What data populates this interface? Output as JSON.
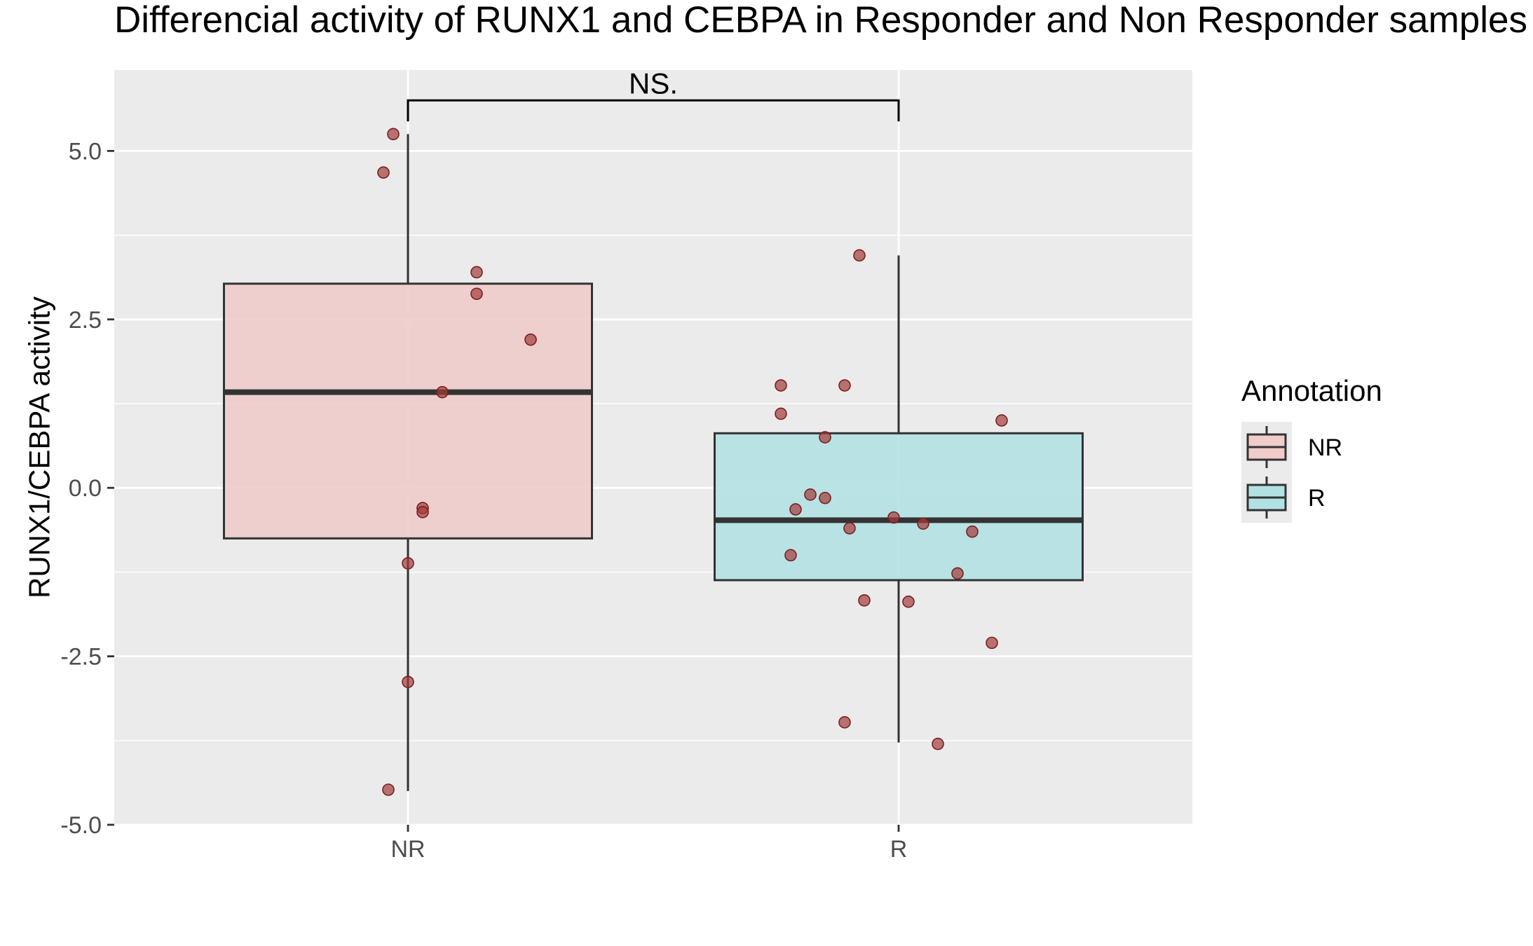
{
  "chart_data": {
    "type": "box",
    "title": "Differencial activity of RUNX1 and CEBPA in Responder and Non Responder samples",
    "xlabel": "",
    "ylabel": "RUNX1/CEBPA activity",
    "ylim": [
      -5.0,
      6.2
    ],
    "yticks": [
      -5.0,
      -2.5,
      0.0,
      2.5,
      5.0
    ],
    "ytick_labels": [
      "-5.0",
      "-2.5",
      "0.0",
      "2.5",
      "5.0"
    ],
    "categories": [
      "NR",
      "R"
    ],
    "significance": {
      "label": "NS.",
      "between": [
        "NR",
        "R"
      ],
      "y": 5.75
    },
    "legend": {
      "title": "Annotation",
      "placement": "right",
      "entries": [
        "NR",
        "R"
      ]
    },
    "colors": {
      "panel": "#ebebeb",
      "grid": "#ffffff",
      "box_edge": "#333333",
      "point": "#a33c3c",
      "NR_fill": "#f0cccb",
      "R_fill": "#b2e1e3"
    },
    "series": [
      {
        "name": "NR",
        "box": {
          "lower_whisker": -4.5,
          "q1": -0.75,
          "median": 1.42,
          "q3": 3.03,
          "upper_whisker": 5.25
        },
        "points": [
          {
            "x": -0.03,
            "y": 5.25
          },
          {
            "x": -0.05,
            "y": 4.68
          },
          {
            "x": 0.14,
            "y": 3.2
          },
          {
            "x": 0.14,
            "y": 2.88
          },
          {
            "x": 0.25,
            "y": 2.2
          },
          {
            "x": 0.07,
            "y": 1.42
          },
          {
            "x": 0.03,
            "y": -0.3
          },
          {
            "x": 0.03,
            "y": -0.36
          },
          {
            "x": 0.0,
            "y": -1.12
          },
          {
            "x": 0.0,
            "y": -2.88
          },
          {
            "x": -0.04,
            "y": -4.48
          }
        ]
      },
      {
        "name": "R",
        "box": {
          "lower_whisker": -3.78,
          "q1": -1.37,
          "median": -0.48,
          "q3": 0.81,
          "upper_whisker": 3.45
        },
        "points": [
          {
            "x": -0.08,
            "y": 3.45
          },
          {
            "x": -0.24,
            "y": 1.52
          },
          {
            "x": -0.11,
            "y": 1.52
          },
          {
            "x": -0.24,
            "y": 1.1
          },
          {
            "x": 0.21,
            "y": 1.0
          },
          {
            "x": -0.15,
            "y": 0.75
          },
          {
            "x": -0.18,
            "y": -0.1
          },
          {
            "x": -0.15,
            "y": -0.15
          },
          {
            "x": -0.21,
            "y": -0.32
          },
          {
            "x": -0.01,
            "y": -0.44
          },
          {
            "x": 0.05,
            "y": -0.53
          },
          {
            "x": -0.1,
            "y": -0.6
          },
          {
            "x": 0.15,
            "y": -0.65
          },
          {
            "x": -0.22,
            "y": -1.0
          },
          {
            "x": 0.12,
            "y": -1.27
          },
          {
            "x": -0.07,
            "y": -1.67
          },
          {
            "x": 0.02,
            "y": -1.69
          },
          {
            "x": 0.19,
            "y": -2.3
          },
          {
            "x": -0.11,
            "y": -3.48
          },
          {
            "x": 0.08,
            "y": -3.8
          }
        ]
      }
    ]
  }
}
